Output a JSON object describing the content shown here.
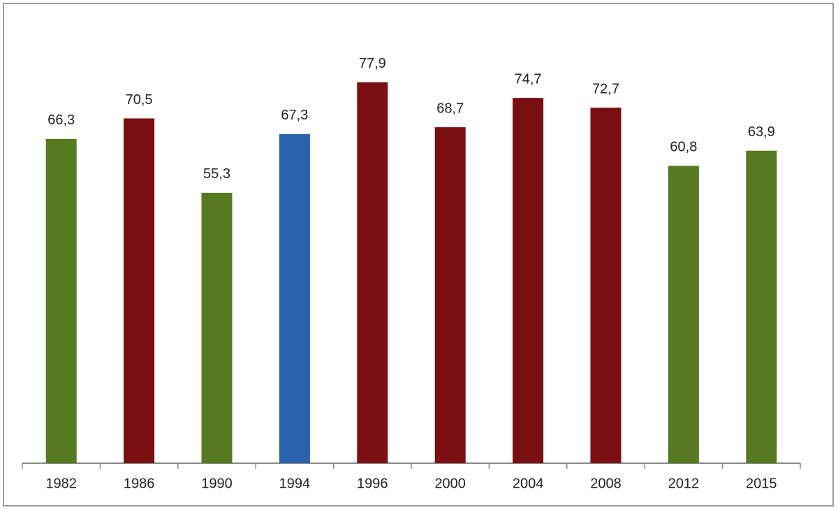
{
  "chart_data": {
    "type": "bar",
    "categories": [
      "1982",
      "1986",
      "1990",
      "1994",
      "1996",
      "2000",
      "2004",
      "2008",
      "2012",
      "2015"
    ],
    "values": [
      66.3,
      70.5,
      55.3,
      67.3,
      77.9,
      68.7,
      74.7,
      72.7,
      60.8,
      63.9
    ],
    "value_labels": [
      "66,3",
      "70,5",
      "55,3",
      "67,3",
      "77,9",
      "68,7",
      "74,7",
      "72,7",
      "60,8",
      "63,9"
    ],
    "colors": [
      "#557a1f",
      "#7a0f11",
      "#557a1f",
      "#2a62ae",
      "#7a0f11",
      "#7a0f11",
      "#7a0f11",
      "#7a0f11",
      "#557a1f",
      "#557a1f"
    ]
  }
}
